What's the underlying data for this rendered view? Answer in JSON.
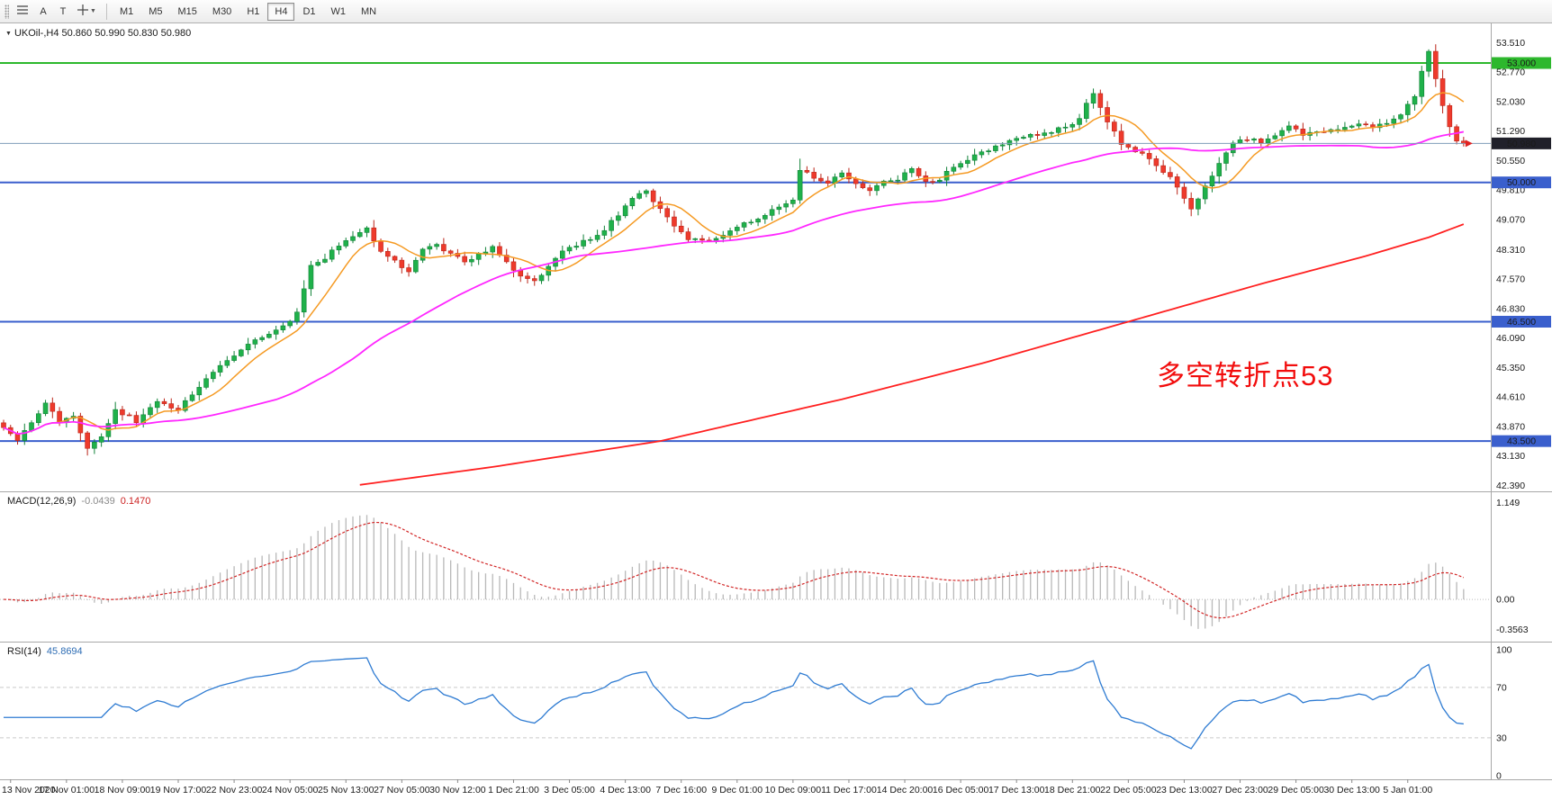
{
  "toolbar": {
    "tools": {
      "a_label": "A",
      "t_label": "T"
    },
    "timeframes": [
      {
        "label": "M1",
        "active": false
      },
      {
        "label": "M5",
        "active": false
      },
      {
        "label": "M15",
        "active": false
      },
      {
        "label": "M30",
        "active": false
      },
      {
        "label": "H1",
        "active": false
      },
      {
        "label": "H4",
        "active": true
      },
      {
        "label": "D1",
        "active": false
      },
      {
        "label": "W1",
        "active": false
      },
      {
        "label": "MN",
        "active": false
      }
    ]
  },
  "chart": {
    "title": "UKOil-,H4 50.860 50.990 50.830 50.980",
    "annotation": {
      "text": "多空转折点53",
      "color": "#f20d0d"
    }
  },
  "chart_data": {
    "type": "candlestick",
    "symbol": "UKOil-",
    "timeframe": "H4",
    "ohlc": {
      "open": "50.860",
      "high": "50.990",
      "low": "50.830",
      "close": "50.980"
    },
    "current_price": 50.98,
    "price_axis": {
      "min": 42.39,
      "max": 53.51,
      "labels": [
        "53.510",
        "52.770",
        "52.030",
        "51.290",
        "50.550",
        "49.810",
        "49.070",
        "48.310",
        "47.570",
        "46.830",
        "46.090",
        "45.350",
        "44.610",
        "43.870",
        "43.130",
        "42.390"
      ],
      "badges": [
        {
          "text": "53.000",
          "price": 53.0,
          "bg": "#2db82d"
        },
        {
          "text": "50.980",
          "price": 50.98,
          "bg": "#20202a"
        },
        {
          "text": "50.000",
          "price": 50.0,
          "bg": "#3a5fcd"
        },
        {
          "text": "46.500",
          "price": 46.5,
          "bg": "#3a5fcd"
        },
        {
          "text": "43.500",
          "price": 43.5,
          "bg": "#3a5fcd"
        }
      ]
    },
    "hlines": [
      {
        "price": 53.0,
        "color": "#2db82d",
        "width": 2
      },
      {
        "price": 50.0,
        "color": "#3a5fcd",
        "width": 2
      },
      {
        "price": 46.5,
        "color": "#3a5fcd",
        "width": 2
      },
      {
        "price": 43.5,
        "color": "#3a5fcd",
        "width": 2
      }
    ],
    "n_candles": 210,
    "candle_colors": {
      "up_fill": "#1fb14a",
      "up_stroke": "#118238",
      "down_fill": "#ee3a2c",
      "down_stroke": "#bb2418"
    },
    "close_anchors": [
      [
        0,
        43.85
      ],
      [
        2,
        43.55
      ],
      [
        4,
        43.95
      ],
      [
        6,
        44.5
      ],
      [
        8,
        43.95
      ],
      [
        10,
        44.15
      ],
      [
        12,
        43.35
      ],
      [
        14,
        43.6
      ],
      [
        16,
        44.3
      ],
      [
        19,
        44.0
      ],
      [
        22,
        44.5
      ],
      [
        25,
        44.25
      ],
      [
        28,
        44.9
      ],
      [
        31,
        45.4
      ],
      [
        34,
        45.8
      ],
      [
        37,
        46.1
      ],
      [
        40,
        46.35
      ],
      [
        42,
        46.7
      ],
      [
        44,
        47.9
      ],
      [
        46,
        48.1
      ],
      [
        48,
        48.45
      ],
      [
        50,
        48.65
      ],
      [
        52,
        48.85
      ],
      [
        54,
        48.3
      ],
      [
        56,
        48.0
      ],
      [
        58,
        47.8
      ],
      [
        60,
        48.3
      ],
      [
        62,
        48.45
      ],
      [
        64,
        48.2
      ],
      [
        66,
        48.0
      ],
      [
        68,
        48.2
      ],
      [
        70,
        48.35
      ],
      [
        72,
        48.0
      ],
      [
        74,
        47.6
      ],
      [
        76,
        47.5
      ],
      [
        78,
        47.9
      ],
      [
        80,
        48.3
      ],
      [
        82,
        48.4
      ],
      [
        84,
        48.6
      ],
      [
        86,
        48.8
      ],
      [
        88,
        49.2
      ],
      [
        90,
        49.6
      ],
      [
        92,
        49.8
      ],
      [
        94,
        49.3
      ],
      [
        96,
        48.9
      ],
      [
        98,
        48.6
      ],
      [
        100,
        48.5
      ],
      [
        102,
        48.6
      ],
      [
        104,
        48.8
      ],
      [
        106,
        48.95
      ],
      [
        108,
        49.1
      ],
      [
        110,
        49.3
      ],
      [
        113,
        49.55
      ],
      [
        114,
        50.35
      ],
      [
        116,
        50.1
      ],
      [
        118,
        50.0
      ],
      [
        120,
        50.2
      ],
      [
        122,
        50.0
      ],
      [
        124,
        49.8
      ],
      [
        126,
        50.0
      ],
      [
        128,
        50.1
      ],
      [
        130,
        50.3
      ],
      [
        132,
        50.0
      ],
      [
        134,
        50.1
      ],
      [
        136,
        50.4
      ],
      [
        138,
        50.6
      ],
      [
        140,
        50.75
      ],
      [
        142,
        50.9
      ],
      [
        144,
        51.05
      ],
      [
        146,
        51.15
      ],
      [
        148,
        51.2
      ],
      [
        150,
        51.3
      ],
      [
        152,
        51.4
      ],
      [
        154,
        51.6
      ],
      [
        155,
        52.0
      ],
      [
        156,
        52.25
      ],
      [
        157,
        51.9
      ],
      [
        158,
        51.55
      ],
      [
        160,
        51.0
      ],
      [
        162,
        50.8
      ],
      [
        164,
        50.6
      ],
      [
        166,
        50.3
      ],
      [
        168,
        49.9
      ],
      [
        170,
        49.35
      ],
      [
        172,
        49.9
      ],
      [
        174,
        50.5
      ],
      [
        176,
        51.0
      ],
      [
        178,
        51.1
      ],
      [
        180,
        51.0
      ],
      [
        182,
        51.2
      ],
      [
        184,
        51.4
      ],
      [
        186,
        51.2
      ],
      [
        188,
        51.3
      ],
      [
        190,
        51.3
      ],
      [
        192,
        51.4
      ],
      [
        194,
        51.5
      ],
      [
        196,
        51.4
      ],
      [
        198,
        51.5
      ],
      [
        200,
        51.7
      ],
      [
        202,
        52.2
      ],
      [
        203,
        52.8
      ],
      [
        204,
        53.3
      ],
      [
        205,
        52.6
      ],
      [
        206,
        51.9
      ],
      [
        207,
        51.4
      ],
      [
        208,
        51.05
      ],
      [
        209,
        50.98
      ]
    ],
    "ma_lines": {
      "fast": {
        "period": 8,
        "color": "#f59a23"
      },
      "mid": {
        "period": 40,
        "color": "#ff27ff"
      },
      "slow": {
        "color": "#ff2020",
        "anchors": [
          [
            51,
            42.4
          ],
          [
            70,
            42.85
          ],
          [
            94,
            43.5
          ],
          [
            120,
            44.55
          ],
          [
            140,
            45.45
          ],
          [
            161,
            46.5
          ],
          [
            180,
            47.45
          ],
          [
            195,
            48.15
          ],
          [
            204,
            48.62
          ],
          [
            209,
            48.95
          ]
        ]
      }
    },
    "time_labels": [
      "13 Nov 2020",
      "17 Nov 01:00",
      "18 Nov 09:00",
      "19 Nov 17:00",
      "22 Nov 23:00",
      "24 Nov 05:00",
      "25 Nov 13:00",
      "27 Nov 05:00",
      "30 Nov 12:00",
      "1 Dec 21:00",
      "3 Dec 05:00",
      "4 Dec 13:00",
      "7 Dec 16:00",
      "9 Dec 01:00",
      "10 Dec 09:00",
      "11 Dec 17:00",
      "14 Dec 20:00",
      "16 Dec 05:00",
      "17 Dec 13:00",
      "18 Dec 21:00",
      "22 Dec 05:00",
      "23 Dec 13:00",
      "27 Dec 23:00",
      "29 Dec 05:00",
      "30 Dec 13:00",
      "5 Jan 01:00"
    ],
    "indicators": {
      "macd": {
        "label": "MACD(12,26,9)",
        "value_main": "-0.0439",
        "value_signal": "0.1470",
        "fast": 12,
        "slow": 26,
        "signal": 9,
        "axis_labels": [
          "1.149",
          "0.00",
          "-0.3563"
        ],
        "axis_values": [
          1.149,
          0,
          -0.3563
        ],
        "histogram_color": "#b8b8b8",
        "signal_color": "#d22626"
      },
      "rsi": {
        "label": "RSI(14)",
        "value": "45.8694",
        "period": 14,
        "axis_labels": [
          "100",
          "70",
          "30",
          "0"
        ],
        "axis_values": [
          100,
          70,
          30,
          0
        ],
        "levels": [
          70,
          30
        ],
        "color": "#2e7bd2"
      }
    }
  }
}
